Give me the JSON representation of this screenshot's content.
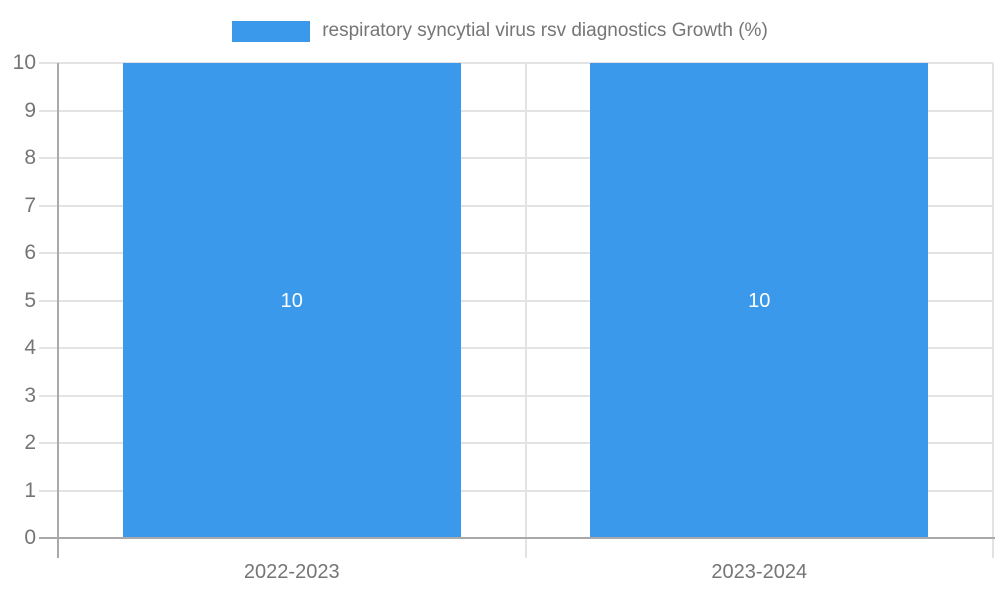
{
  "legend": {
    "label": "respiratory syncytial virus rsv diagnostics Growth (%)"
  },
  "colors": {
    "bar": "#3B99EC",
    "axis_line": "#A9A9A9",
    "gridline": "#E3E3E3",
    "tick_text": "#757575",
    "bar_label_text": "#FFFFFF",
    "background": "#FFFFFF"
  },
  "chart_data": {
    "type": "bar",
    "title": "",
    "categories": [
      "2022-2023",
      "2023-2024"
    ],
    "series": [
      {
        "name": "respiratory syncytial virus rsv diagnostics Growth (%)",
        "values": [
          10,
          10
        ]
      }
    ],
    "bar_value_labels": [
      "10",
      "10"
    ],
    "xlabel": "",
    "ylabel": "",
    "ylim": [
      0,
      10
    ],
    "ytick_step": 1,
    "ytick_labels": [
      "0",
      "1",
      "2",
      "3",
      "4",
      "5",
      "6",
      "7",
      "8",
      "9",
      "10"
    ],
    "grid": true,
    "legend_position": "top-center"
  }
}
